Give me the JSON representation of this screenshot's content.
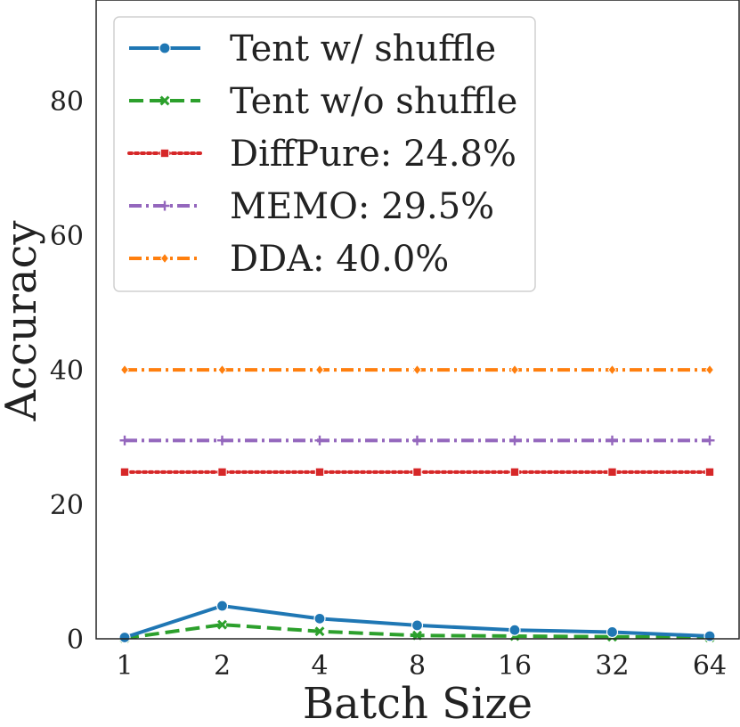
{
  "chart_data": {
    "type": "line",
    "title": "",
    "xlabel": "Batch Size",
    "ylabel": "Accuracy",
    "categories": [
      "1",
      "2",
      "4",
      "8",
      "16",
      "32",
      "64"
    ],
    "yticks": [
      "0",
      "20",
      "40",
      "60",
      "80"
    ],
    "ytick_values": [
      0,
      20,
      40,
      60,
      80
    ],
    "ylim": [
      0,
      95
    ],
    "grid": false,
    "legend_position": "top-left",
    "series": [
      {
        "name": "Tent w/ shuffle",
        "legend": "Tent w/ shuffle",
        "color": "#1f77b4",
        "dash": "solid",
        "marker": "circle",
        "values": [
          0.2,
          4.9,
          3.0,
          2.0,
          1.3,
          1.0,
          0.4
        ]
      },
      {
        "name": "Tent w/o shuffle",
        "legend": "Tent w/o shuffle",
        "color": "#2ca02c",
        "dash": "dashed",
        "marker": "x",
        "values": [
          0.1,
          2.1,
          1.1,
          0.5,
          0.4,
          0.3,
          0.2
        ]
      },
      {
        "name": "DiffPure",
        "legend": "DiffPure: 24.8%",
        "color": "#d62728",
        "dash": "dotted",
        "marker": "square",
        "values": [
          24.8,
          24.8,
          24.8,
          24.8,
          24.8,
          24.8,
          24.8
        ]
      },
      {
        "name": "MEMO",
        "legend": "MEMO: 29.5%",
        "color": "#9467bd",
        "dash": "dashdot-plus",
        "marker": "plus",
        "values": [
          29.5,
          29.5,
          29.5,
          29.5,
          29.5,
          29.5,
          29.5
        ]
      },
      {
        "name": "DDA",
        "legend": "DDA: 40.0%",
        "color": "#ff7f0e",
        "dash": "dashdot",
        "marker": "diamond",
        "values": [
          40.0,
          40.0,
          40.0,
          40.0,
          40.0,
          40.0,
          40.0
        ]
      }
    ]
  }
}
